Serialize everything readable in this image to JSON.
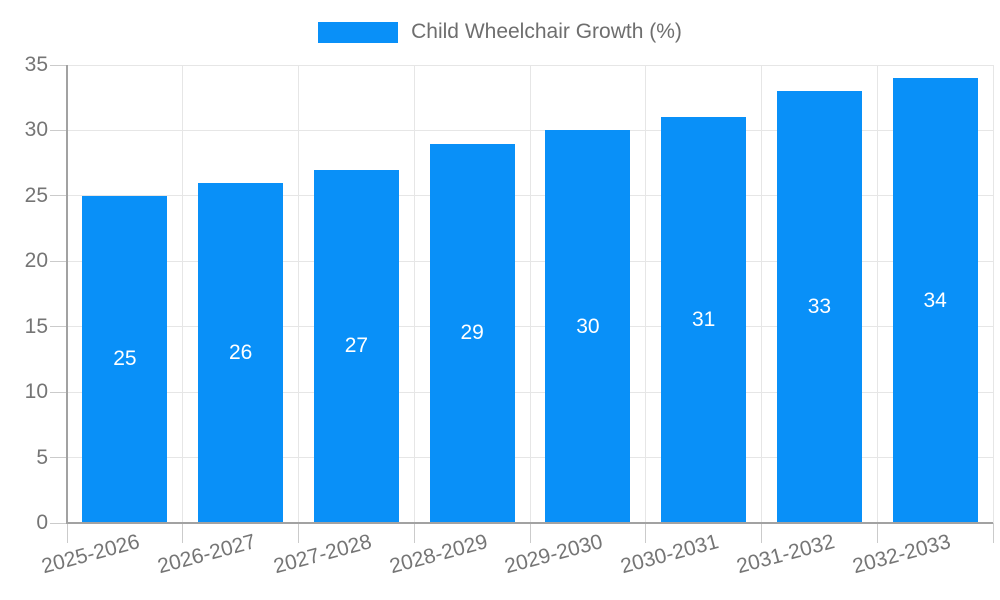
{
  "legend": {
    "label": "Child Wheelchair Growth (%)"
  },
  "chart_data": {
    "type": "bar",
    "title": "Child Wheelchair Growth (%)",
    "categories": [
      "2025-2026",
      "2026-2027",
      "2027-2028",
      "2028-2029",
      "2029-2030",
      "2030-2031",
      "2031-2032",
      "2032-2033"
    ],
    "values": [
      25,
      26,
      27,
      29,
      30,
      31,
      33,
      34
    ],
    "value_labels_shown": true,
    "xlabel": "",
    "ylabel": "",
    "ylim": [
      0,
      35
    ],
    "yticks": [
      0,
      5,
      10,
      15,
      20,
      25,
      30,
      35
    ],
    "grid": true,
    "legend_position": "top-center",
    "x_tick_rotation_deg": -15,
    "colors": {
      "bar": "#0990F8",
      "gridline": "#e6e6e6",
      "axis_line": "#a2a2a2",
      "tick_mark": "#cbcbcb",
      "axis_label": "#757575",
      "legend_text": "#6e6e6e",
      "value_label": "#ffffff",
      "background": "#ffffff"
    }
  }
}
